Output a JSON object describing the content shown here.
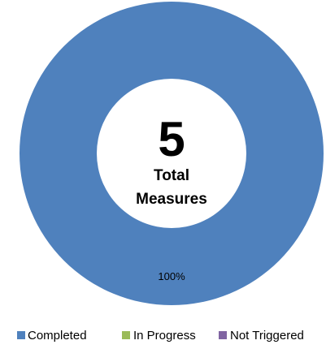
{
  "chart_data": {
    "type": "pie",
    "variant": "donut",
    "categories": [
      "Completed",
      "In Progress",
      "Not Triggered"
    ],
    "values": [
      5,
      0,
      0
    ],
    "colors": [
      "#4f81bd",
      "#9bbb59",
      "#8064a2"
    ],
    "slice_labels": [
      "100%",
      "",
      ""
    ],
    "center": {
      "number": "5",
      "label_line1": "Total",
      "label_line2": "Measures"
    },
    "legend": {
      "position": "bottom",
      "entries": [
        "Completed",
        "In Progress",
        "Not Triggered"
      ]
    }
  }
}
